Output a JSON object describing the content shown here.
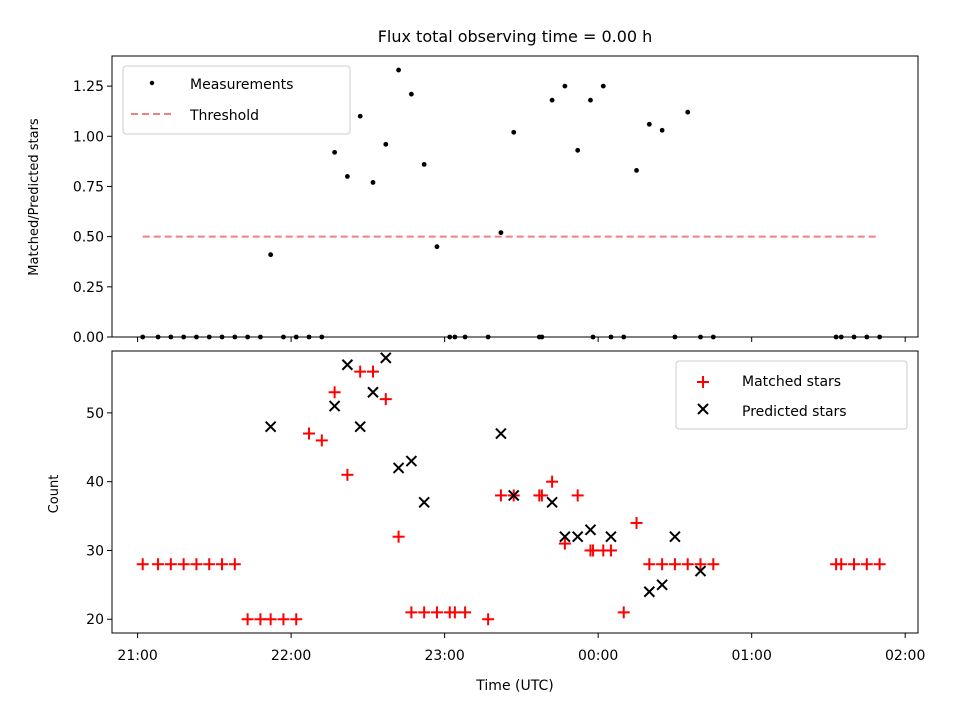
{
  "chart_data": [
    {
      "type": "scatter",
      "title": "Flux total observing time = 0.00 h",
      "ylabel": "Matched/Predicted stars",
      "xlabel": "",
      "ylim": [
        0,
        1.4
      ],
      "xlim": [
        "20:50",
        "02:05"
      ],
      "yticks": [
        "0.00",
        "0.25",
        "0.50",
        "0.75",
        "1.00",
        "1.25"
      ],
      "yticks_values": [
        0,
        0.25,
        0.5,
        0.75,
        1.0,
        1.25
      ],
      "legend_position": "top-left",
      "series": [
        {
          "name": "Measurements",
          "marker": "dot",
          "color": "#000000",
          "x": [
            "21:02",
            "21:08",
            "21:13",
            "21:18",
            "21:23",
            "21:28",
            "21:33",
            "21:38",
            "21:43",
            "21:48",
            "21:52",
            "21:57",
            "22:02",
            "22:07",
            "22:12",
            "22:17",
            "22:22",
            "22:27",
            "22:32",
            "22:37",
            "22:42",
            "22:47",
            "22:52",
            "22:57",
            "23:02",
            "23:04",
            "23:08",
            "23:17",
            "23:22",
            "23:27",
            "23:37",
            "23:38",
            "23:42",
            "23:47",
            "23:52",
            "23:57",
            "23:58",
            "24:02",
            "24:05",
            "24:10",
            "24:15",
            "24:20",
            "24:25",
            "24:30",
            "24:35",
            "24:40",
            "24:45",
            "25:33",
            "25:35",
            "25:40",
            "25:45",
            "25:50"
          ],
          "y": [
            0,
            0,
            0,
            0,
            0,
            0,
            0,
            0,
            0,
            0,
            0.41,
            0,
            0,
            0,
            0,
            0.92,
            0.8,
            1.1,
            0.77,
            0.96,
            1.33,
            1.21,
            0.86,
            0.45,
            0,
            0,
            0,
            0,
            0.52,
            1.02,
            0,
            0,
            1.18,
            1.25,
            0.93,
            1.18,
            0,
            1.25,
            0,
            0,
            0.83,
            1.06,
            1.03,
            0,
            1.12,
            0,
            0,
            0,
            0,
            0,
            0,
            0
          ]
        },
        {
          "name": "Threshold",
          "marker": "dashed-line",
          "color": "#f08080",
          "x": [
            "21:02",
            "25:50"
          ],
          "y": [
            0.5,
            0.5
          ]
        }
      ]
    },
    {
      "type": "scatter",
      "title": "",
      "ylabel": "Count",
      "xlabel": "Time (UTC)",
      "ylim": [
        18,
        59
      ],
      "xlim": [
        "20:50",
        "02:05"
      ],
      "xticks": [
        "21:00",
        "22:00",
        "23:00",
        "00:00",
        "01:00",
        "02:00"
      ],
      "yticks": [
        "20",
        "30",
        "40",
        "50"
      ],
      "yticks_values": [
        20,
        30,
        40,
        50
      ],
      "legend_position": "top-right",
      "series": [
        {
          "name": "Matched stars",
          "marker": "plus",
          "color": "#ff0000",
          "x": [
            "21:02",
            "21:08",
            "21:13",
            "21:18",
            "21:23",
            "21:28",
            "21:33",
            "21:38",
            "21:43",
            "21:48",
            "21:52",
            "21:57",
            "22:02",
            "22:07",
            "22:12",
            "22:17",
            "22:22",
            "22:27",
            "22:32",
            "22:37",
            "22:42",
            "22:47",
            "22:52",
            "22:57",
            "23:02",
            "23:04",
            "23:08",
            "23:17",
            "23:22",
            "23:27",
            "23:37",
            "23:38",
            "23:42",
            "23:47",
            "23:52",
            "23:57",
            "23:58",
            "24:02",
            "24:05",
            "24:10",
            "24:15",
            "24:20",
            "24:25",
            "24:30",
            "24:35",
            "24:40",
            "24:45",
            "25:33",
            "25:35",
            "25:40",
            "25:45",
            "25:50"
          ],
          "y": [
            28,
            28,
            28,
            28,
            28,
            28,
            28,
            28,
            20,
            20,
            20,
            20,
            20,
            47,
            46,
            53,
            41,
            56,
            56,
            52,
            32,
            21,
            21,
            21,
            21,
            21,
            21,
            20,
            38,
            38,
            38,
            38,
            40,
            31,
            38,
            30,
            30,
            30,
            30,
            21,
            34,
            28,
            28,
            28,
            28,
            28,
            28,
            28,
            28,
            28,
            28,
            28
          ]
        },
        {
          "name": "Predicted stars",
          "marker": "x",
          "color": "#000000",
          "x": [
            "21:52",
            "22:17",
            "22:22",
            "22:27",
            "22:32",
            "22:37",
            "22:42",
            "22:47",
            "22:52",
            "23:22",
            "23:27",
            "23:42",
            "23:47",
            "23:52",
            "23:57",
            "24:05",
            "24:20",
            "24:25",
            "24:30",
            "24:40"
          ],
          "y": [
            48,
            51,
            57,
            48,
            53,
            58,
            42,
            43,
            37,
            47,
            38,
            37,
            32,
            32,
            33,
            32,
            24,
            25,
            32,
            27
          ]
        }
      ]
    }
  ]
}
